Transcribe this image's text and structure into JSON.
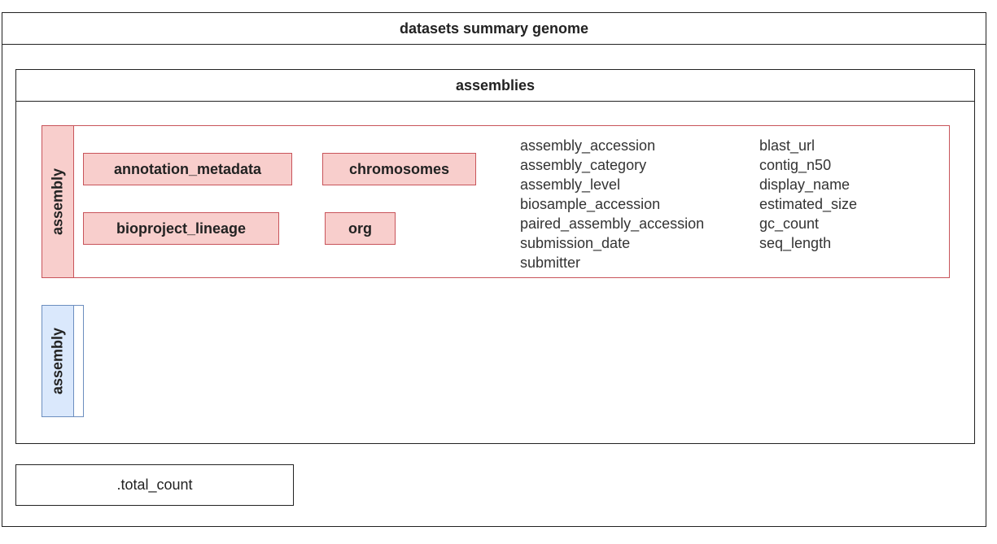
{
  "diagram": {
    "title": "datasets summary genome",
    "assemblies": {
      "title": "assemblies",
      "assembly_expanded": {
        "label": "assembly",
        "objects": [
          "annotation_metadata",
          "chromosomes",
          "bioproject_lineage",
          "org"
        ],
        "fields_col1": [
          "assembly_accession",
          "assembly_category",
          "assembly_level",
          "biosample_accession",
          "paired_assembly_accession",
          "submission_date",
          "submitter"
        ],
        "fields_col2": [
          "blast_url",
          "contig_n50",
          "display_name",
          "estimated_size",
          "gc_count",
          "seq_length"
        ]
      },
      "assembly_collapsed": {
        "label": "assembly"
      }
    },
    "total_count": ".total_count",
    "colors": {
      "object_fill": "#f8cecc",
      "object_stroke": "#c8545a",
      "collapsed_fill": "#dae8fc",
      "collapsed_stroke": "#6c8ebf",
      "line": "#222222"
    }
  }
}
